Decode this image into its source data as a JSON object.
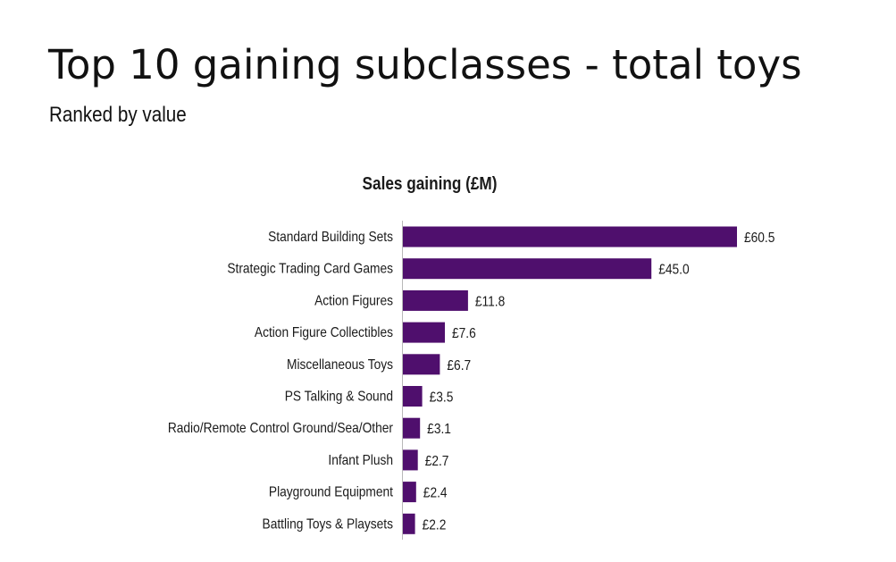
{
  "header": {
    "title": "Top 10 gaining subclasses - total toys",
    "subtitle": "Ranked by value"
  },
  "chart_data": {
    "type": "bar",
    "orientation": "horizontal",
    "title": "Sales gaining (£M)",
    "xlabel": "",
    "ylabel": "",
    "value_prefix": "£",
    "bar_color": "#4f0f6d",
    "grid": false,
    "categories": [
      "Standard Building Sets",
      "Strategic Trading Card Games",
      "Action Figures",
      "Action Figure Collectibles",
      "Miscellaneous Toys",
      "PS Talking & Sound",
      "Radio/Remote Control Ground/Sea/Other",
      "Infant Plush",
      "Playground Equipment",
      "Battling Toys & Playsets"
    ],
    "values": [
      60.5,
      45.0,
      11.8,
      7.6,
      6.7,
      3.5,
      3.1,
      2.7,
      2.4,
      2.2
    ],
    "labels": [
      "£60.5",
      "£45.0",
      "£11.8",
      "£7.6",
      "£6.7",
      "£3.5",
      "£3.1",
      "£2.7",
      "£2.4",
      "£2.2"
    ],
    "xlim": [
      0,
      60.5
    ]
  }
}
